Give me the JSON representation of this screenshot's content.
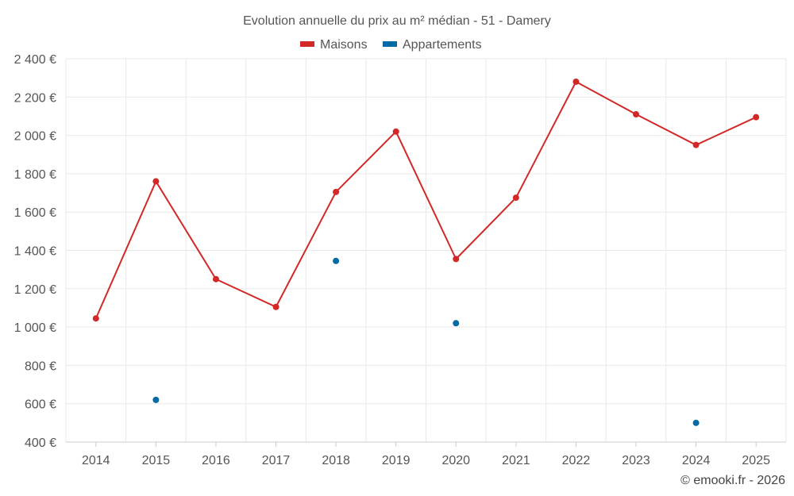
{
  "chart_data": {
    "type": "line",
    "title": "Evolution annuelle du prix au m² médian - 51 - Damery",
    "categories": [
      "2014",
      "2015",
      "2016",
      "2017",
      "2018",
      "2019",
      "2020",
      "2021",
      "2022",
      "2023",
      "2024",
      "2025"
    ],
    "series": [
      {
        "name": "Maisons",
        "color": "#d32828",
        "values": [
          1045,
          1760,
          1250,
          1105,
          1705,
          2020,
          1355,
          1675,
          2280,
          2110,
          1950,
          2095
        ]
      },
      {
        "name": "Appartements",
        "color": "#006ba4",
        "values": [
          null,
          620,
          null,
          null,
          1345,
          null,
          1020,
          null,
          null,
          null,
          500,
          null
        ]
      }
    ],
    "ylim": [
      400,
      2400
    ],
    "yticks": [
      400,
      600,
      800,
      1000,
      1200,
      1400,
      1600,
      1800,
      2000,
      2200,
      2400
    ],
    "ytick_labels": [
      "400 €",
      "600 €",
      "800 €",
      "1 000 €",
      "1 200 €",
      "1 400 €",
      "1 600 €",
      "1 800 €",
      "2 000 €",
      "2 200 €",
      "2 400 €"
    ],
    "xlabel": "",
    "ylabel": "",
    "grid": true,
    "legend_position": "top-center"
  },
  "credit": "© emooki.fr - 2026"
}
